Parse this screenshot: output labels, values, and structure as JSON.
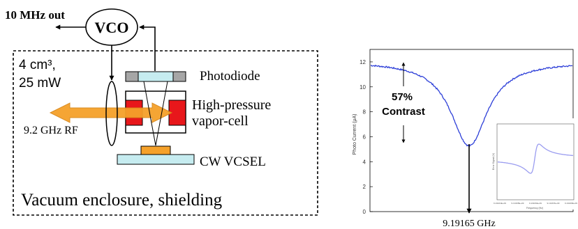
{
  "diagram": {
    "vco_label": "VCO",
    "mhz_out_label": "10 MHz out",
    "spec_line1": "4 cm³,",
    "spec_line2": "25 mW",
    "photodiode_label": "Photodiode",
    "vapor_cell_line1": "High-pressure",
    "vapor_cell_line2": "vapor-cell",
    "rf_label": "9.2 GHz RF",
    "vcsel_label": "CW VCSEL",
    "enclosure_label": "Vacuum enclosure, shielding",
    "colors": {
      "red": "#e8171b",
      "orange": "#f5a12a",
      "cyan": "#c6ecf0",
      "gray": "#a6a6a6"
    }
  },
  "plot": {
    "y_tick_labels": [
      "0",
      "2",
      "4",
      "6",
      "8",
      "10",
      "12"
    ],
    "ylabel": "Photo Current (μA)",
    "contrast_line1": "57%",
    "contrast_line2": "Contrast",
    "frequency_label": "9.19165 GHz",
    "curve_color": "#2d3fd8",
    "inset": {
      "ylabel": "Error Signal (V)",
      "xlabel": "Frequency (Hz)",
      "x_tick_labels": [
        "9.19164E+09",
        "9.19165E+09",
        "9.19166E+09",
        "9.19167E+09",
        "9.19168E+09"
      ],
      "curve_color": "#9a9cf0"
    }
  }
}
